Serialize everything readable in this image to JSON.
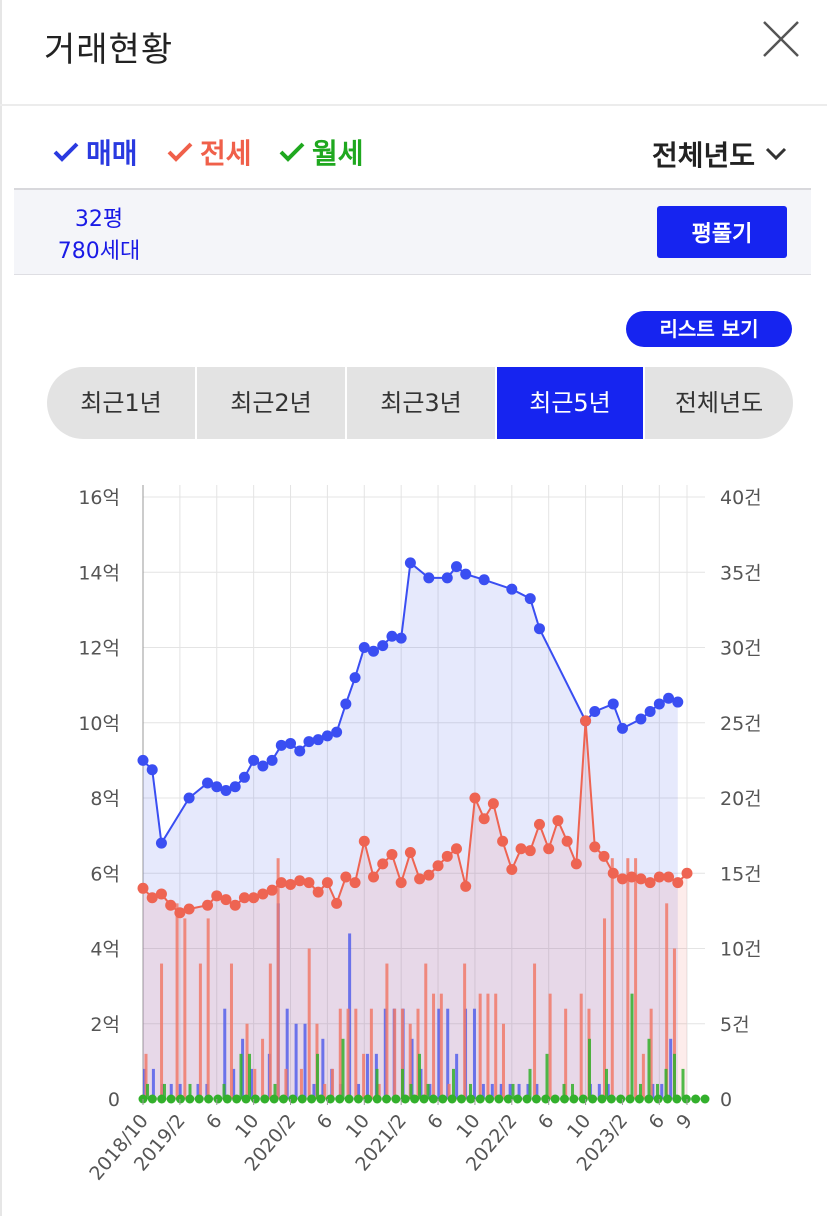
{
  "header": {
    "title": "거래현황"
  },
  "legend": {
    "items": [
      {
        "label": "매매",
        "color": "#2a3ae0"
      },
      {
        "label": "전세",
        "color": "#f0604a"
      },
      {
        "label": "월세",
        "color": "#1fa81f"
      }
    ],
    "year_selector": "전체년도"
  },
  "info": {
    "area": "32평",
    "households": "780세대",
    "button": "평풀기"
  },
  "list_button": "리스트 보기",
  "tabs": [
    {
      "label": "최근1년",
      "active": false
    },
    {
      "label": "최근2년",
      "active": false
    },
    {
      "label": "최근3년",
      "active": false
    },
    {
      "label": "최근5년",
      "active": true
    },
    {
      "label": "전체년도",
      "active": false
    }
  ],
  "chart_data": {
    "type": "line",
    "x_range": [
      "2018-10",
      "2023-09"
    ],
    "x_tick_labels": [
      "2018/10",
      "2019/2",
      "6",
      "10",
      "2020/2",
      "6",
      "10",
      "2021/2",
      "6",
      "10",
      "2022/2",
      "6",
      "10",
      "2023/2",
      "6",
      "9"
    ],
    "y_left": {
      "ticks": [
        "0",
        "2억",
        "4억",
        "6억",
        "8억",
        "10억",
        "12억",
        "14억",
        "16억"
      ],
      "range": [
        0,
        16
      ]
    },
    "y_right": {
      "ticks": [
        "0",
        "5건",
        "10건",
        "15건",
        "20건",
        "25건",
        "30건",
        "35건",
        "40건"
      ],
      "range": [
        0,
        40
      ]
    },
    "grid": true,
    "price_series": [
      {
        "name": "매매",
        "color": "#3a4ef2",
        "points": [
          [
            "2018-10",
            9.0
          ],
          [
            "2018-11",
            8.75
          ],
          [
            "2018-12",
            6.8
          ],
          [
            "2019-03",
            8.0
          ],
          [
            "2019-05",
            8.4
          ],
          [
            "2019-06",
            8.3
          ],
          [
            "2019-07",
            8.2
          ],
          [
            "2019-08",
            8.3
          ],
          [
            "2019-09",
            8.55
          ],
          [
            "2019-10",
            9.0
          ],
          [
            "2019-11",
            8.85
          ],
          [
            "2019-12",
            9.0
          ],
          [
            "2020-01",
            9.4
          ],
          [
            "2020-02",
            9.45
          ],
          [
            "2020-03",
            9.25
          ],
          [
            "2020-04",
            9.5
          ],
          [
            "2020-05",
            9.55
          ],
          [
            "2020-06",
            9.65
          ],
          [
            "2020-07",
            9.75
          ],
          [
            "2020-08",
            10.5
          ],
          [
            "2020-09",
            11.2
          ],
          [
            "2020-10",
            12.0
          ],
          [
            "2020-11",
            11.9
          ],
          [
            "2020-12",
            12.05
          ],
          [
            "2021-01",
            12.3
          ],
          [
            "2021-02",
            12.25
          ],
          [
            "2021-03",
            14.25
          ],
          [
            "2021-05",
            13.85
          ],
          [
            "2021-07",
            13.85
          ],
          [
            "2021-08",
            14.15
          ],
          [
            "2021-09",
            13.95
          ],
          [
            "2021-11",
            13.8
          ],
          [
            "2022-02",
            13.55
          ],
          [
            "2022-04",
            13.3
          ],
          [
            "2022-05",
            12.5
          ],
          [
            "2022-10",
            10.05
          ],
          [
            "2022-11",
            10.3
          ],
          [
            "2023-01",
            10.5
          ],
          [
            "2023-02",
            9.85
          ],
          [
            "2023-04",
            10.1
          ],
          [
            "2023-05",
            10.3
          ],
          [
            "2023-06",
            10.5
          ],
          [
            "2023-07",
            10.65
          ],
          [
            "2023-08",
            10.55
          ]
        ]
      },
      {
        "name": "전세",
        "color": "#ee6452",
        "points": [
          [
            "2018-10",
            5.6
          ],
          [
            "2018-11",
            5.35
          ],
          [
            "2018-12",
            5.45
          ],
          [
            "2019-01",
            5.15
          ],
          [
            "2019-02",
            4.95
          ],
          [
            "2019-03",
            5.05
          ],
          [
            "2019-05",
            5.15
          ],
          [
            "2019-06",
            5.4
          ],
          [
            "2019-07",
            5.3
          ],
          [
            "2019-08",
            5.15
          ],
          [
            "2019-09",
            5.35
          ],
          [
            "2019-10",
            5.35
          ],
          [
            "2019-11",
            5.45
          ],
          [
            "2019-12",
            5.55
          ],
          [
            "2020-01",
            5.75
          ],
          [
            "2020-02",
            5.7
          ],
          [
            "2020-03",
            5.8
          ],
          [
            "2020-04",
            5.75
          ],
          [
            "2020-05",
            5.5
          ],
          [
            "2020-06",
            5.75
          ],
          [
            "2020-07",
            5.2
          ],
          [
            "2020-08",
            5.9
          ],
          [
            "2020-09",
            5.75
          ],
          [
            "2020-10",
            6.85
          ],
          [
            "2020-11",
            5.9
          ],
          [
            "2020-12",
            6.25
          ],
          [
            "2021-01",
            6.5
          ],
          [
            "2021-02",
            5.75
          ],
          [
            "2021-03",
            6.55
          ],
          [
            "2021-04",
            5.85
          ],
          [
            "2021-05",
            5.95
          ],
          [
            "2021-06",
            6.2
          ],
          [
            "2021-07",
            6.45
          ],
          [
            "2021-08",
            6.65
          ],
          [
            "2021-09",
            5.65
          ],
          [
            "2021-10",
            8.0
          ],
          [
            "2021-11",
            7.45
          ],
          [
            "2021-12",
            7.85
          ],
          [
            "2022-01",
            6.85
          ],
          [
            "2022-02",
            6.1
          ],
          [
            "2022-03",
            6.65
          ],
          [
            "2022-04",
            6.6
          ],
          [
            "2022-05",
            7.3
          ],
          [
            "2022-06",
            6.65
          ],
          [
            "2022-07",
            7.4
          ],
          [
            "2022-08",
            6.85
          ],
          [
            "2022-09",
            6.25
          ],
          [
            "2022-10",
            10.05
          ],
          [
            "2022-11",
            6.7
          ],
          [
            "2022-12",
            6.45
          ],
          [
            "2023-01",
            6.0
          ],
          [
            "2023-02",
            5.85
          ],
          [
            "2023-03",
            5.9
          ],
          [
            "2023-04",
            5.85
          ],
          [
            "2023-05",
            5.75
          ],
          [
            "2023-06",
            5.9
          ],
          [
            "2023-07",
            5.9
          ],
          [
            "2023-08",
            5.75
          ],
          [
            "2023-09",
            6.0
          ]
        ]
      }
    ],
    "count_series": [
      {
        "name": "매매",
        "color": "#5560ea",
        "values": [
          2,
          2,
          1,
          1,
          1,
          0,
          1,
          1,
          0,
          6,
          2,
          4,
          2,
          0,
          3,
          13,
          6,
          5,
          5,
          1,
          4,
          2,
          1,
          11,
          1,
          3,
          3,
          6,
          6,
          6,
          4,
          2,
          1,
          6,
          6,
          3,
          6,
          6,
          1,
          1,
          1,
          1,
          1,
          1,
          1,
          0,
          0,
          0,
          0,
          0,
          1,
          1,
          1,
          0,
          0,
          0,
          0,
          1,
          1,
          4,
          0
        ]
      },
      {
        "name": "전세",
        "color": "#f07a6a",
        "values": [
          3,
          0,
          9,
          0,
          13,
          12,
          0,
          9,
          12,
          0,
          0,
          9,
          0,
          5,
          2,
          4,
          9,
          16,
          2,
          0,
          2,
          10,
          5,
          1,
          2,
          6,
          6,
          6,
          3,
          6,
          1,
          9,
          6,
          6,
          5,
          6,
          9,
          7,
          7,
          1,
          0,
          9,
          0,
          7,
          7,
          7,
          5,
          0,
          0,
          0,
          9,
          0,
          7,
          0,
          6,
          0,
          7,
          6,
          0,
          12,
          16,
          0,
          16,
          16,
          3,
          6,
          0,
          13,
          10,
          0
        ]
      },
      {
        "name": "월세",
        "color": "#33b02c",
        "values": [
          1,
          0,
          1,
          0,
          0,
          1,
          0,
          0,
          0,
          1,
          0,
          3,
          3,
          0,
          0,
          1,
          0,
          0,
          0,
          0,
          3,
          0,
          0,
          4,
          0,
          0,
          0,
          2,
          0,
          0,
          2,
          1,
          3,
          1,
          0,
          0,
          2,
          0,
          1,
          0,
          0,
          0,
          0,
          1,
          0,
          2,
          0,
          3,
          0,
          1,
          1,
          0,
          4,
          0,
          2,
          0,
          0,
          7,
          1,
          4,
          1,
          2,
          3,
          2
        ]
      }
    ]
  }
}
